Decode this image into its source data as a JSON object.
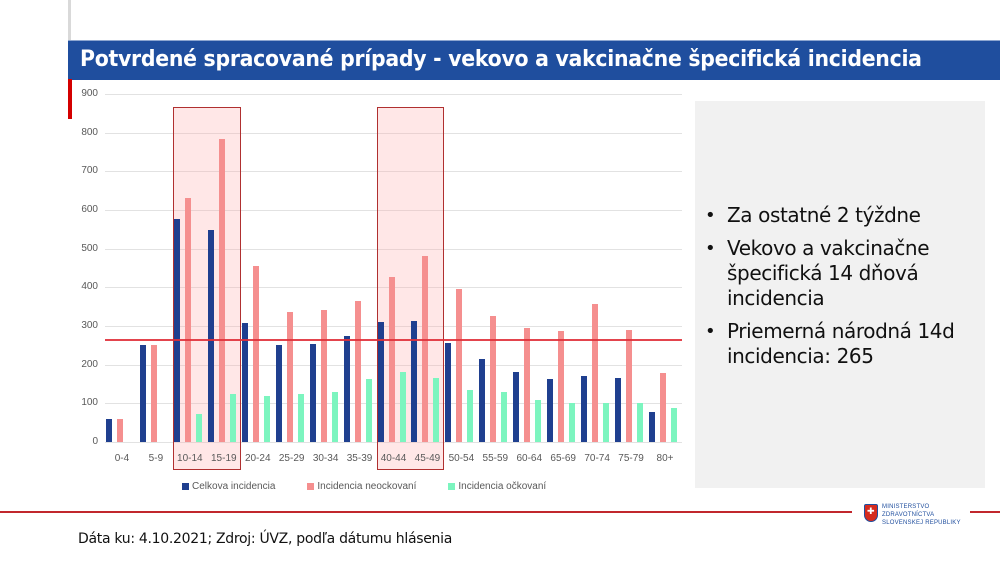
{
  "slide": {
    "title": "Potvrdené spracované prípady - vekovo a vakcinačne špecifická incidencia",
    "footer": "Dáta ku: 4.10.2021; Zdroj: ÚVZ, podľa dátumu hlásenia",
    "logo": {
      "line1": "MINISTERSTVO",
      "line2": "ZDRAVOTNÍCTVA",
      "line3": "SLOVENSKEJ REPUBLIKY"
    },
    "side_panel": {
      "bullets": [
        "Za ostatné 2 týždne",
        "Vekovo a vakcinačne špecifická 14 dňová incidencia",
        "Priemerná národná 14d incidencia: 265"
      ]
    }
  },
  "colors": {
    "title_bar": "#1f4e9e",
    "celkova": "#1f3f8f",
    "neockovani": "#f58f8f",
    "ockovani": "#7cf5bf",
    "average_line": "#e0303a",
    "highlight_border": "#b03030"
  },
  "chart_data": {
    "type": "bar",
    "title": "",
    "xlabel": "",
    "ylabel": "",
    "ylim": [
      0,
      900
    ],
    "yticks": [
      "0",
      "100",
      "200",
      "300",
      "400",
      "500",
      "600",
      "700",
      "800",
      "900"
    ],
    "grid": true,
    "legend_position": "bottom",
    "categories": [
      "0-4",
      "5-9",
      "10-14",
      "15-19",
      "20-24",
      "25-29",
      "30-34",
      "35-39",
      "40-44",
      "45-49",
      "50-54",
      "55-59",
      "60-64",
      "65-69",
      "70-74",
      "75-79",
      "80+"
    ],
    "series": [
      {
        "name": "Celkova incidencia",
        "values": [
          60,
          252,
          578,
          548,
          308,
          252,
          253,
          275,
          310,
          312,
          257,
          215,
          180,
          163,
          170,
          165,
          78
        ]
      },
      {
        "name": "Incidencia neockovaní",
        "values": [
          60,
          252,
          630,
          783,
          455,
          335,
          342,
          365,
          428,
          480,
          396,
          325,
          295,
          288,
          357,
          290,
          178
        ]
      },
      {
        "name": "Incidencia očkovaní",
        "values": [
          0,
          0,
          72,
          125,
          118,
          125,
          130,
          162,
          180,
          165,
          135,
          130,
          108,
          100,
          100,
          100,
          88
        ]
      }
    ],
    "annotations": {
      "average_line": {
        "value": 265,
        "label": "Priemerná národná 14d incidencia"
      },
      "highlighted_groups": [
        [
          "10-14",
          "15-19"
        ],
        [
          "40-44",
          "45-49"
        ]
      ]
    }
  }
}
